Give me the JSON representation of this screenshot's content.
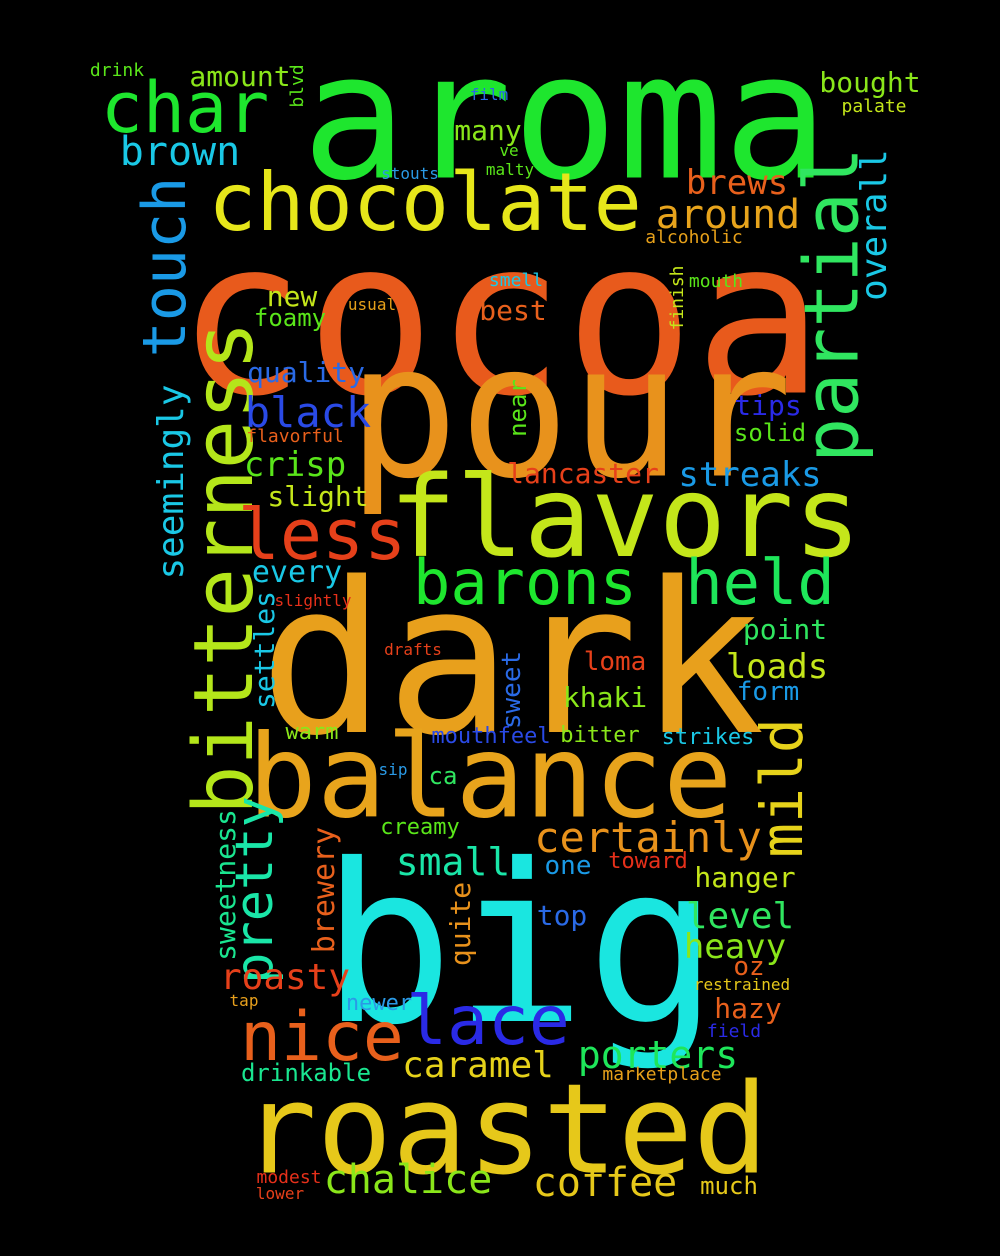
{
  "palette": {
    "background": "#000000",
    "green": "#1ee62e",
    "orange_red": "#e85a1c",
    "orange": "#e8921c",
    "yellow": "#e6e61a",
    "yellow_green": "#c4e61a",
    "cyan": "#1ae6e0",
    "blue": "#2a2ae6",
    "sky_blue": "#1a9ae6",
    "red": "#e6301a",
    "gold": "#e6c81a"
  },
  "words": [
    {
      "text": "aroma",
      "color": "#1ee62e"
    },
    {
      "text": "cocoa",
      "color": "#e85a1c"
    },
    {
      "text": "pour",
      "color": "#e8921c"
    },
    {
      "text": "dark",
      "color": "#e8a01c"
    },
    {
      "text": "big",
      "color": "#1ae6e0"
    },
    {
      "text": "balance",
      "color": "#e8a41c"
    },
    {
      "text": "roasted",
      "color": "#e6c81a"
    },
    {
      "text": "flavors",
      "color": "#c4e61a"
    },
    {
      "text": "chocolate",
      "color": "#e6e61a"
    },
    {
      "text": "bitterness",
      "color": "#b4e61a"
    },
    {
      "text": "barons",
      "color": "#1ee62e"
    },
    {
      "text": "held",
      "color": "#1ee65a"
    },
    {
      "text": "less",
      "color": "#e6401a"
    },
    {
      "text": "char",
      "color": "#1ee62e"
    },
    {
      "text": "partial",
      "color": "#30e660"
    },
    {
      "text": "touch",
      "color": "#1a9ae6"
    },
    {
      "text": "nice",
      "color": "#e8601c"
    },
    {
      "text": "lace",
      "color": "#2a2ae6"
    },
    {
      "text": "mild",
      "color": "#e6d21a"
    },
    {
      "text": "brown",
      "color": "#1ac8e6"
    },
    {
      "text": "certainly",
      "color": "#e8921c"
    },
    {
      "text": "pretty",
      "color": "#1ae6a8"
    },
    {
      "text": "black",
      "color": "#2a4ae6"
    },
    {
      "text": "around",
      "color": "#e8a41c"
    },
    {
      "text": "seemingly",
      "color": "#1ac8e6"
    },
    {
      "text": "roasty",
      "color": "#e6401a"
    },
    {
      "text": "porters",
      "color": "#1ee65a"
    },
    {
      "text": "caramel",
      "color": "#e6d21a"
    },
    {
      "text": "chalice",
      "color": "#8ae61a"
    },
    {
      "text": "coffee",
      "color": "#e6c81a"
    },
    {
      "text": "small",
      "color": "#1ae6a8"
    },
    {
      "text": "overall",
      "color": "#1ac8e6"
    },
    {
      "text": "streaks",
      "color": "#1a9ae6"
    },
    {
      "text": "loads",
      "color": "#c4e61a"
    },
    {
      "text": "heavy",
      "color": "#8ae61a"
    },
    {
      "text": "level",
      "color": "#30e660"
    },
    {
      "text": "crisp",
      "color": "#5ae61a"
    },
    {
      "text": "brews",
      "color": "#e8601c"
    },
    {
      "text": "lancaster",
      "color": "#e6401a"
    },
    {
      "text": "sweetness",
      "color": "#1ae690"
    },
    {
      "text": "brewery",
      "color": "#e8601c"
    },
    {
      "text": "settles",
      "color": "#1ac8e6"
    },
    {
      "text": "every",
      "color": "#1ac8e6"
    },
    {
      "text": "many",
      "color": "#8ae61a"
    },
    {
      "text": "bought",
      "color": "#8ae61a"
    },
    {
      "text": "amount",
      "color": "#8ae61a"
    },
    {
      "text": "quality",
      "color": "#2a6ae6"
    },
    {
      "text": "best",
      "color": "#e8601c"
    },
    {
      "text": "new",
      "color": "#c4e61a"
    },
    {
      "text": "slight",
      "color": "#c4e61a"
    },
    {
      "text": "point",
      "color": "#30e660"
    },
    {
      "text": "loma",
      "color": "#e6401a"
    },
    {
      "text": "khaki",
      "color": "#8ae61a"
    },
    {
      "text": "form",
      "color": "#1a9ae6"
    },
    {
      "text": "hanger",
      "color": "#c4e61a"
    },
    {
      "text": "tips",
      "color": "#2a2ae6"
    },
    {
      "text": "solid",
      "color": "#5ae61a"
    },
    {
      "text": "hazy",
      "color": "#e8601c"
    },
    {
      "text": "oz",
      "color": "#e8601c"
    },
    {
      "text": "foamy",
      "color": "#5ae61a"
    },
    {
      "text": "sweet",
      "color": "#2a6ae6"
    },
    {
      "text": "quite",
      "color": "#e8921c"
    },
    {
      "text": "warm",
      "color": "#8ae61a"
    },
    {
      "text": "mouthfeel",
      "color": "#2a4ae6"
    },
    {
      "text": "bitter",
      "color": "#8ae61a"
    },
    {
      "text": "strikes",
      "color": "#1ac8e6"
    },
    {
      "text": "creamy",
      "color": "#5ae61a"
    },
    {
      "text": "one",
      "color": "#1a9ae6"
    },
    {
      "text": "toward",
      "color": "#e6301a"
    },
    {
      "text": "top",
      "color": "#2a6ae6"
    },
    {
      "text": "ca",
      "color": "#30e660"
    },
    {
      "text": "newer",
      "color": "#2a9ae6"
    },
    {
      "text": "drinkable",
      "color": "#1ae690"
    },
    {
      "text": "much",
      "color": "#e6c81a"
    },
    {
      "text": "near",
      "color": "#5ae61a"
    },
    {
      "text": "drink",
      "color": "#5ae61a"
    },
    {
      "text": "blvd",
      "color": "#5ae61a"
    },
    {
      "text": "film",
      "color": "#2a6ae6"
    },
    {
      "text": "ve",
      "color": "#5ae61a"
    },
    {
      "text": "malty",
      "color": "#5ae61a"
    },
    {
      "text": "stouts",
      "color": "#2a9ae6"
    },
    {
      "text": "palate",
      "color": "#c4e61a"
    },
    {
      "text": "alcoholic",
      "color": "#e6a01a"
    },
    {
      "text": "smell",
      "color": "#1ac8e6"
    },
    {
      "text": "mouth",
      "color": "#5ae61a"
    },
    {
      "text": "finish",
      "color": "#c4e61a"
    },
    {
      "text": "usual",
      "color": "#e6a01a"
    },
    {
      "text": "flavorful",
      "color": "#e8601c"
    },
    {
      "text": "slightly",
      "color": "#e6301a"
    },
    {
      "text": "drafts",
      "color": "#e6401a"
    },
    {
      "text": "sip",
      "color": "#2a9ae6"
    },
    {
      "text": "tap",
      "color": "#e8a01c"
    },
    {
      "text": "restrained",
      "color": "#e6c81a"
    },
    {
      "text": "field",
      "color": "#2a2ae6"
    },
    {
      "text": "marketplace",
      "color": "#e6a01a"
    },
    {
      "text": "modest",
      "color": "#e6301a"
    },
    {
      "text": "lower",
      "color": "#e6401a"
    }
  ]
}
